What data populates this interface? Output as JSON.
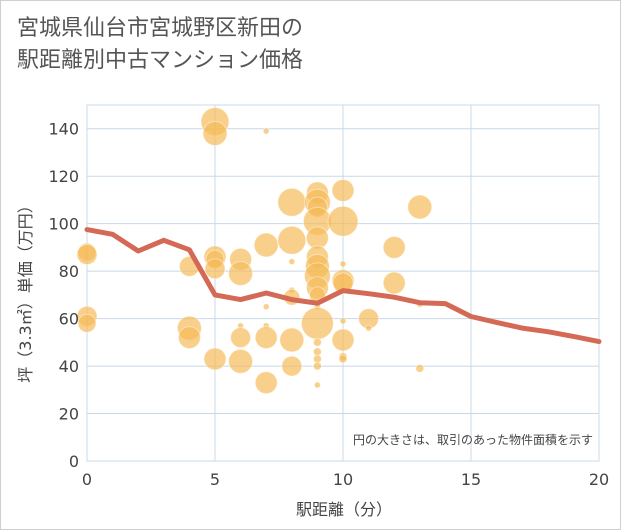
{
  "title_lines": [
    "宮城県仙台市宮城野区新田の",
    "駅距離別中古マンション価格"
  ],
  "chart_data": {
    "type": "scatter",
    "xlabel": "駅距離（分）",
    "ylabel": "坪（3.3㎡）単価（万円）",
    "xlim": [
      0,
      20
    ],
    "ylim": [
      0,
      150
    ],
    "x_ticks": [
      0,
      5,
      10,
      15,
      20
    ],
    "y_ticks": [
      0,
      20,
      40,
      60,
      80,
      100,
      120,
      140
    ],
    "grid": true,
    "note": "円の大きさは、取引のあった物件面積を示す",
    "colors": {
      "bubble": "#f5b955",
      "line": "#d46a55",
      "grid": "#c8d8e8"
    },
    "points": [
      {
        "x": 0,
        "y": 88,
        "r": 9
      },
      {
        "x": 0,
        "y": 87,
        "r": 10
      },
      {
        "x": 0,
        "y": 61,
        "r": 10
      },
      {
        "x": 0,
        "y": 58,
        "r": 9
      },
      {
        "x": 4,
        "y": 82,
        "r": 10
      },
      {
        "x": 4,
        "y": 56,
        "r": 12
      },
      {
        "x": 4,
        "y": 52,
        "r": 11
      },
      {
        "x": 5,
        "y": 143,
        "r": 14
      },
      {
        "x": 5,
        "y": 138,
        "r": 12
      },
      {
        "x": 5,
        "y": 86,
        "r": 11
      },
      {
        "x": 5,
        "y": 85,
        "r": 9
      },
      {
        "x": 5,
        "y": 81,
        "r": 10
      },
      {
        "x": 5,
        "y": 43,
        "r": 11
      },
      {
        "x": 6,
        "y": 85,
        "r": 11
      },
      {
        "x": 6,
        "y": 79,
        "r": 12
      },
      {
        "x": 6,
        "y": 57,
        "r": 3
      },
      {
        "x": 6,
        "y": 52,
        "r": 10
      },
      {
        "x": 6,
        "y": 42,
        "r": 12
      },
      {
        "x": 7,
        "y": 139,
        "r": 3
      },
      {
        "x": 7,
        "y": 91,
        "r": 12
      },
      {
        "x": 7,
        "y": 65,
        "r": 3
      },
      {
        "x": 7,
        "y": 57,
        "r": 3
      },
      {
        "x": 7,
        "y": 52,
        "r": 11
      },
      {
        "x": 7,
        "y": 33,
        "r": 11
      },
      {
        "x": 8,
        "y": 109,
        "r": 14
      },
      {
        "x": 8,
        "y": 93,
        "r": 14
      },
      {
        "x": 8,
        "y": 84,
        "r": 3
      },
      {
        "x": 8,
        "y": 72,
        "r": 3
      },
      {
        "x": 8,
        "y": 69,
        "r": 8
      },
      {
        "x": 8,
        "y": 51,
        "r": 12
      },
      {
        "x": 8,
        "y": 40,
        "r": 10
      },
      {
        "x": 9,
        "y": 113,
        "r": 11
      },
      {
        "x": 9,
        "y": 109,
        "r": 13
      },
      {
        "x": 9,
        "y": 107,
        "r": 10
      },
      {
        "x": 9,
        "y": 101,
        "r": 14
      },
      {
        "x": 9,
        "y": 94,
        "r": 11
      },
      {
        "x": 9,
        "y": 86,
        "r": 11
      },
      {
        "x": 9,
        "y": 82,
        "r": 12
      },
      {
        "x": 9,
        "y": 78,
        "r": 13
      },
      {
        "x": 9,
        "y": 73,
        "r": 11
      },
      {
        "x": 9,
        "y": 70,
        "r": 8
      },
      {
        "x": 9,
        "y": 65,
        "r": 3
      },
      {
        "x": 9,
        "y": 58,
        "r": 16
      },
      {
        "x": 9,
        "y": 50,
        "r": 4
      },
      {
        "x": 9,
        "y": 46,
        "r": 4
      },
      {
        "x": 9,
        "y": 43,
        "r": 4
      },
      {
        "x": 9,
        "y": 40,
        "r": 4
      },
      {
        "x": 9,
        "y": 32,
        "r": 3
      },
      {
        "x": 10,
        "y": 114,
        "r": 11
      },
      {
        "x": 10,
        "y": 101,
        "r": 15
      },
      {
        "x": 10,
        "y": 83,
        "r": 3
      },
      {
        "x": 10,
        "y": 76,
        "r": 11
      },
      {
        "x": 10,
        "y": 75,
        "r": 10
      },
      {
        "x": 10,
        "y": 59,
        "r": 3
      },
      {
        "x": 10,
        "y": 51,
        "r": 11
      },
      {
        "x": 10,
        "y": 44,
        "r": 4
      },
      {
        "x": 10,
        "y": 43,
        "r": 4
      },
      {
        "x": 11,
        "y": 60,
        "r": 10
      },
      {
        "x": 11,
        "y": 56,
        "r": 3
      },
      {
        "x": 12,
        "y": 90,
        "r": 11
      },
      {
        "x": 12,
        "y": 75,
        "r": 11
      },
      {
        "x": 13,
        "y": 107,
        "r": 12
      },
      {
        "x": 13,
        "y": 66,
        "r": 3
      },
      {
        "x": 13,
        "y": 39,
        "r": 4
      }
    ],
    "trend": {
      "x": [
        0,
        1,
        2,
        3,
        4,
        5,
        6,
        7,
        8,
        9,
        10,
        11,
        12,
        13,
        14,
        15,
        16,
        17,
        18,
        19,
        20
      ],
      "y": [
        97.5,
        95.5,
        88.5,
        93,
        89,
        70,
        68,
        70.8,
        68,
        66.5,
        71.8,
        70.5,
        69,
        66.7,
        66.3,
        60.9,
        58.4,
        56,
        54.5,
        52.5,
        50.3
      ]
    }
  }
}
